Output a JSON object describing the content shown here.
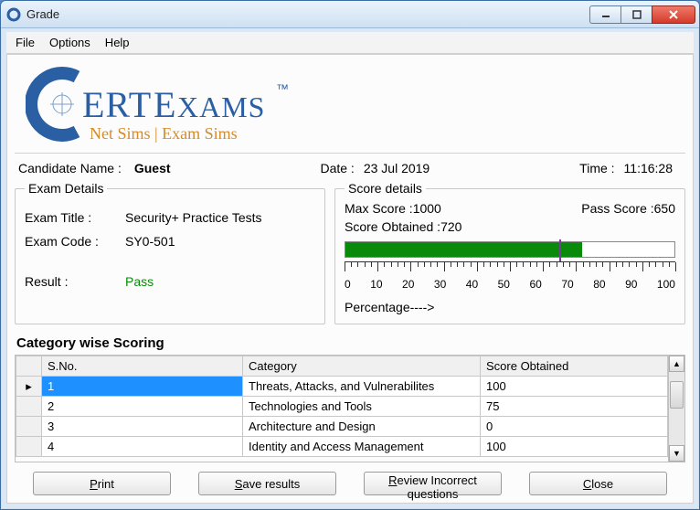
{
  "window": {
    "title": "Grade",
    "icon_letter": "C",
    "icon_color": "#2a5fa4"
  },
  "menu": {
    "file": "File",
    "options": "Options",
    "help": "Help"
  },
  "logo": {
    "brand_c_color": "#2a5fa4",
    "brand_text": "ERT",
    "brand_text2": "EXAMS",
    "tm": "™",
    "subtitle": "Net Sims | Exam Sims",
    "subtitle_color": "#d68a2a"
  },
  "header": {
    "candidate_label": "Candidate Name :",
    "candidate_value": "Guest",
    "date_label": "Date :",
    "date_value": "23 Jul 2019",
    "time_label": "Time :",
    "time_value": "11:16:28"
  },
  "exam_details": {
    "legend": "Exam Details",
    "title_label": "Exam Title :",
    "title_value": "Security+  Practice Tests",
    "code_label": "Exam Code :",
    "code_value": "SY0-501",
    "result_label": "Result :",
    "result_value": "Pass"
  },
  "score_details": {
    "legend": "Score details",
    "max_label": "Max Score :",
    "max_value": "1000",
    "pass_label": "Pass Score :",
    "pass_value": "650",
    "obtained_label": "Score Obtained :",
    "obtained_value": "720",
    "progress_fill_pct": 72,
    "pass_marker_pct": 65,
    "fill_color": "#0a8a0a",
    "marker_color": "#7a3a9a",
    "axis_labels": [
      "0",
      "10",
      "20",
      "30",
      "40",
      "50",
      "60",
      "70",
      "80",
      "90",
      "100"
    ],
    "percentage_label": "Percentage---->"
  },
  "category": {
    "title": "Category wise Scoring",
    "columns": {
      "rowhdr": "",
      "sno": "S.No.",
      "cat": "Category",
      "score": "Score Obtained"
    },
    "rows": [
      {
        "sno": "1",
        "cat": "Threats, Attacks, and Vulnerabilites",
        "score": "100",
        "selected": true
      },
      {
        "sno": "2",
        "cat": "Technologies and Tools",
        "score": "75",
        "selected": false
      },
      {
        "sno": "3",
        "cat": "Architecture and Design",
        "score": "0",
        "selected": false
      },
      {
        "sno": "4",
        "cat": "Identity and Access Management",
        "score": "100",
        "selected": false
      }
    ],
    "row_indicator": "▸"
  },
  "buttons": {
    "print": "Print",
    "save": "Save results",
    "review": "Review Incorrect questions",
    "close": "Close"
  }
}
